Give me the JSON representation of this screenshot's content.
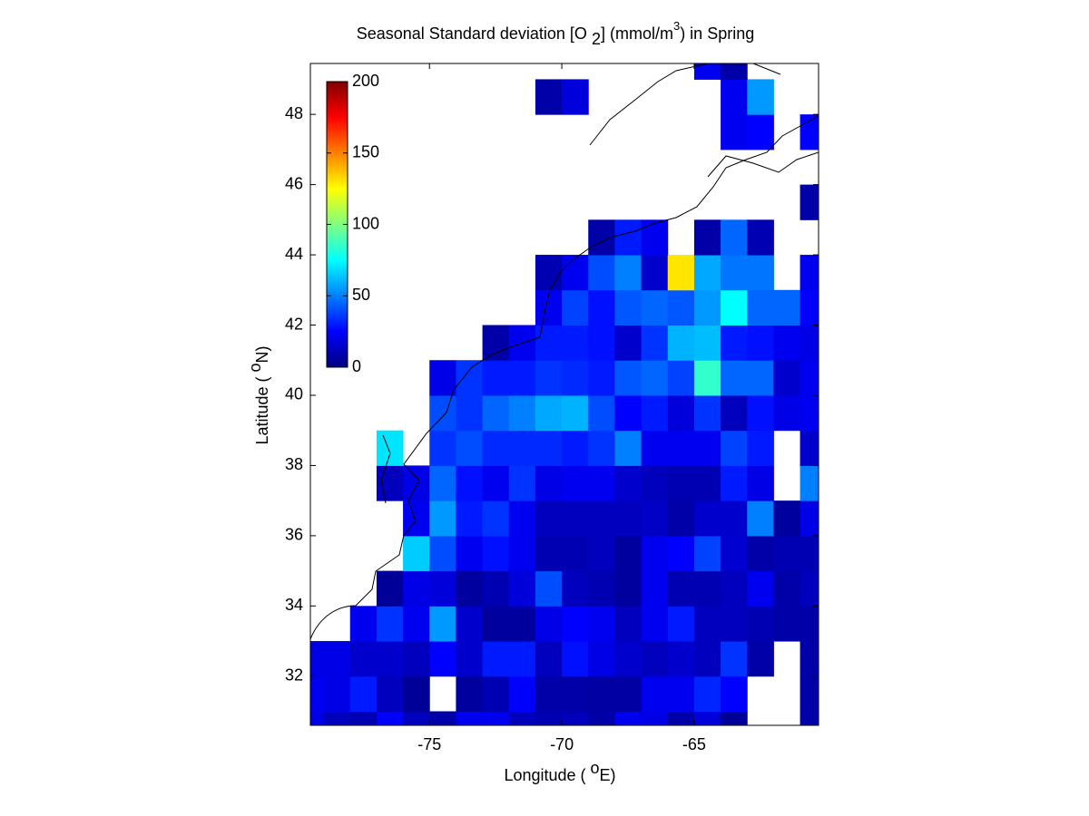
{
  "chart_data": {
    "type": "heatmap",
    "title": [
      "Seasonal Standard deviation [O",
      "2",
      "] (mmol/m",
      "3",
      ") in  Spring"
    ],
    "xlabel": [
      "Longitude (",
      "o",
      "E)"
    ],
    "ylabel": [
      "Latitude (",
      "o",
      "N)"
    ],
    "x": [
      -79.5,
      -78.5,
      -77.5,
      -76.5,
      -75.5,
      -74.5,
      -73.5,
      -72.5,
      -71.5,
      -70.5,
      -69.5,
      -68.5,
      -67.5,
      -66.5,
      -65.5,
      -64.5,
      -63.5,
      -62.5,
      -61.5,
      -60.5
    ],
    "y": [
      30.5,
      31.5,
      32.5,
      33.5,
      34.5,
      35.5,
      36.5,
      37.5,
      38.5,
      39.5,
      40.5,
      41.5,
      42.5,
      43.5,
      44.5,
      45.5,
      46.5,
      47.5,
      48.5,
      49.5
    ],
    "z": [
      [
        20,
        12,
        10,
        25,
        12,
        8,
        22,
        22,
        12,
        10,
        12,
        8,
        22,
        20,
        8,
        18,
        5,
        null,
        null,
        8
      ],
      [
        22,
        20,
        30,
        12,
        5,
        null,
        6,
        10,
        25,
        8,
        8,
        7,
        7,
        22,
        22,
        32,
        25,
        null,
        null,
        8
      ],
      [
        20,
        20,
        15,
        15,
        12,
        25,
        15,
        30,
        30,
        12,
        28,
        20,
        15,
        12,
        15,
        12,
        35,
        8,
        null,
        8
      ],
      [
        null,
        null,
        22,
        35,
        22,
        55,
        15,
        6,
        6,
        20,
        25,
        22,
        12,
        22,
        30,
        12,
        12,
        10,
        8,
        8
      ],
      [
        null,
        null,
        null,
        5,
        20,
        18,
        6,
        10,
        18,
        40,
        12,
        10,
        6,
        22,
        10,
        10,
        12,
        22,
        8,
        12
      ],
      [
        null,
        null,
        null,
        null,
        65,
        40,
        22,
        28,
        22,
        10,
        10,
        12,
        6,
        22,
        25,
        38,
        16,
        8,
        10,
        10
      ],
      [
        null,
        null,
        null,
        null,
        22,
        55,
        30,
        35,
        22,
        12,
        12,
        12,
        12,
        14,
        8,
        15,
        15,
        50,
        6,
        20
      ],
      [
        null,
        null,
        null,
        12,
        20,
        45,
        28,
        22,
        35,
        20,
        22,
        22,
        15,
        12,
        10,
        10,
        30,
        20,
        null,
        50
      ],
      [
        null,
        null,
        null,
        70,
        null,
        35,
        40,
        33,
        33,
        33,
        30,
        35,
        50,
        22,
        22,
        22,
        38,
        30,
        null,
        15
      ],
      [
        null,
        null,
        null,
        null,
        null,
        40,
        35,
        45,
        50,
        58,
        60,
        40,
        25,
        30,
        18,
        35,
        12,
        28,
        20,
        22
      ],
      [
        null,
        null,
        null,
        null,
        null,
        20,
        35,
        30,
        30,
        35,
        33,
        30,
        42,
        45,
        38,
        85,
        45,
        45,
        15,
        22
      ],
      [
        null,
        null,
        null,
        null,
        null,
        null,
        null,
        8,
        22,
        30,
        30,
        28,
        15,
        35,
        60,
        62,
        30,
        28,
        22,
        20
      ],
      [
        null,
        null,
        null,
        null,
        null,
        null,
        null,
        null,
        null,
        22,
        38,
        28,
        42,
        45,
        42,
        55,
        75,
        45,
        45,
        25
      ],
      [
        null,
        null,
        null,
        null,
        null,
        null,
        null,
        null,
        null,
        10,
        22,
        40,
        50,
        15,
        130,
        58,
        48,
        48,
        null,
        22
      ],
      [
        null,
        null,
        null,
        null,
        null,
        null,
        null,
        null,
        null,
        null,
        null,
        8,
        30,
        22,
        null,
        8,
        45,
        10,
        null,
        null
      ],
      [
        null,
        null,
        null,
        null,
        null,
        null,
        null,
        null,
        null,
        null,
        null,
        null,
        null,
        null,
        null,
        null,
        null,
        null,
        null,
        8
      ],
      [
        null,
        null,
        null,
        null,
        null,
        null,
        null,
        null,
        null,
        null,
        null,
        null,
        null,
        null,
        null,
        null,
        null,
        null,
        null,
        null
      ],
      [
        null,
        null,
        null,
        null,
        null,
        null,
        null,
        null,
        null,
        null,
        null,
        null,
        null,
        null,
        null,
        null,
        22,
        25,
        null,
        25
      ],
      [
        null,
        null,
        null,
        null,
        null,
        null,
        null,
        null,
        null,
        8,
        18,
        null,
        null,
        null,
        null,
        null,
        22,
        55,
        null,
        null
      ],
      [
        null,
        null,
        null,
        null,
        null,
        null,
        null,
        null,
        null,
        null,
        null,
        null,
        null,
        null,
        null,
        22,
        8,
        null,
        null,
        null
      ]
    ],
    "xlim": [
      -79.5,
      -60.3
    ],
    "ylim": [
      30.6,
      49.45
    ],
    "xticks": [
      -75,
      -70,
      -65
    ],
    "yticks": [
      32,
      34,
      36,
      38,
      40,
      42,
      44,
      46,
      48
    ],
    "colormap": "jet",
    "clim": [
      0,
      200
    ],
    "colorbar_ticks": [
      0,
      50,
      100,
      150,
      200
    ]
  }
}
